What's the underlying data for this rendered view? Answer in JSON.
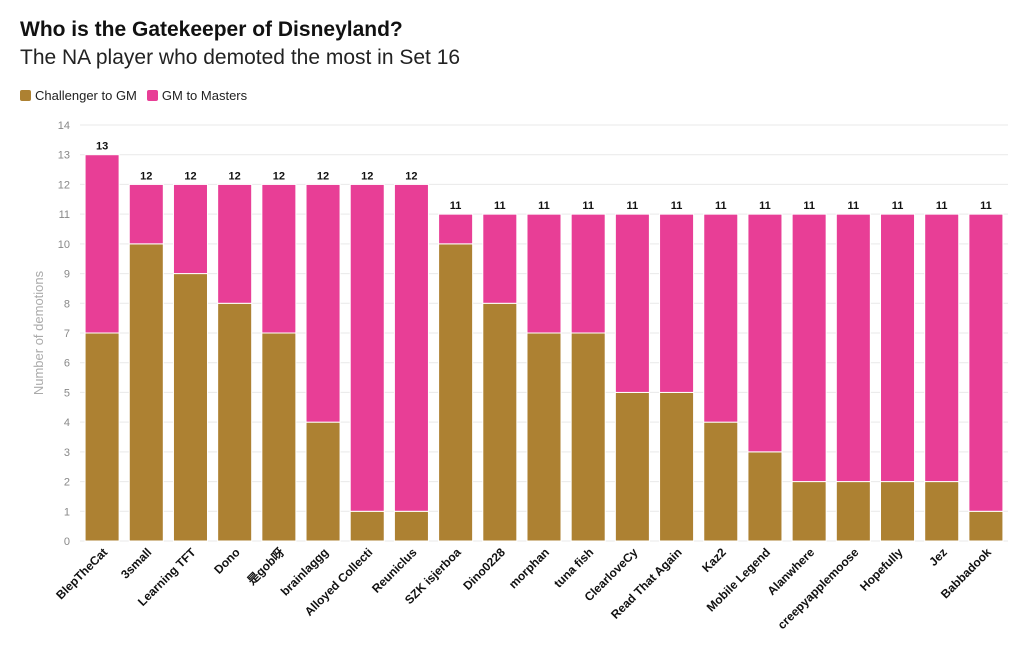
{
  "chart_data": {
    "type": "bar",
    "stacked": true,
    "title": "Who is the Gatekeeper of Disneyland?",
    "subtitle": "The NA player who demoted the most in Set 16",
    "ylabel": "Number of demotions",
    "xlabel": "",
    "ylim": [
      0,
      14
    ],
    "yticks": [
      0,
      1,
      2,
      3,
      4,
      5,
      6,
      7,
      8,
      9,
      10,
      11,
      12,
      13,
      14
    ],
    "grid": true,
    "legend_position": "top-left",
    "categories": [
      "BlepTheCat",
      "3small",
      "Learning TFT",
      "Dono",
      "是gob呀",
      "brainlaggg",
      "Alloyed Collecti",
      "Reuniclus",
      "SZK isjerboa",
      "Dino0228",
      "morphan",
      "tuna fish",
      "ClearloveCy",
      "Read That Again",
      "Kaz2",
      "Mobile Legend",
      "Alanwhere",
      "creepyapplemoose",
      "Hopefully",
      "Jez",
      "Babbadook"
    ],
    "series": [
      {
        "name": "Challenger to GM",
        "color": "#AD8132",
        "values": [
          7,
          10,
          9,
          8,
          7,
          4,
          1,
          1,
          10,
          8,
          7,
          7,
          5,
          5,
          4,
          3,
          2,
          2,
          2,
          2,
          1
        ]
      },
      {
        "name": "GM to Masters",
        "color": "#E83E96",
        "values": [
          6,
          2,
          3,
          4,
          5,
          8,
          11,
          11,
          1,
          3,
          4,
          4,
          6,
          6,
          7,
          8,
          9,
          9,
          9,
          9,
          10
        ]
      }
    ],
    "totals": [
      13,
      12,
      12,
      12,
      12,
      12,
      12,
      12,
      11,
      11,
      11,
      11,
      11,
      11,
      11,
      11,
      11,
      11,
      11,
      11,
      11
    ]
  }
}
